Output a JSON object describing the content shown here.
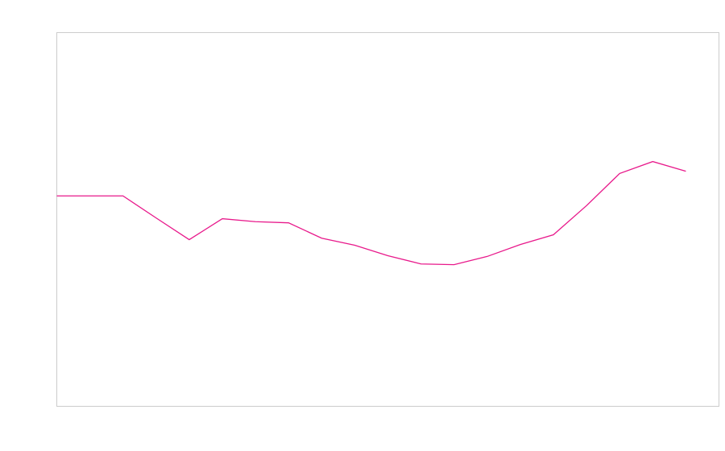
{
  "chart_data": {
    "type": "line",
    "x": [
      0,
      1,
      2,
      3,
      4,
      5,
      6,
      7,
      8,
      9,
      10,
      11,
      12,
      13,
      14,
      15,
      16,
      17,
      18,
      19
    ],
    "xlim": [
      0,
      20
    ],
    "ylim": [
      0,
      100
    ],
    "series": [
      {
        "color": "#e8198b",
        "values": [
          56.3,
          56.3,
          56.3,
          50.4,
          44.6,
          50.2,
          49.4,
          49.1,
          45.0,
          43.1,
          40.3,
          38.1,
          37.9,
          40.1,
          43.3,
          45.9,
          53.7,
          62.3,
          65.5,
          62.9
        ]
      }
    ]
  }
}
